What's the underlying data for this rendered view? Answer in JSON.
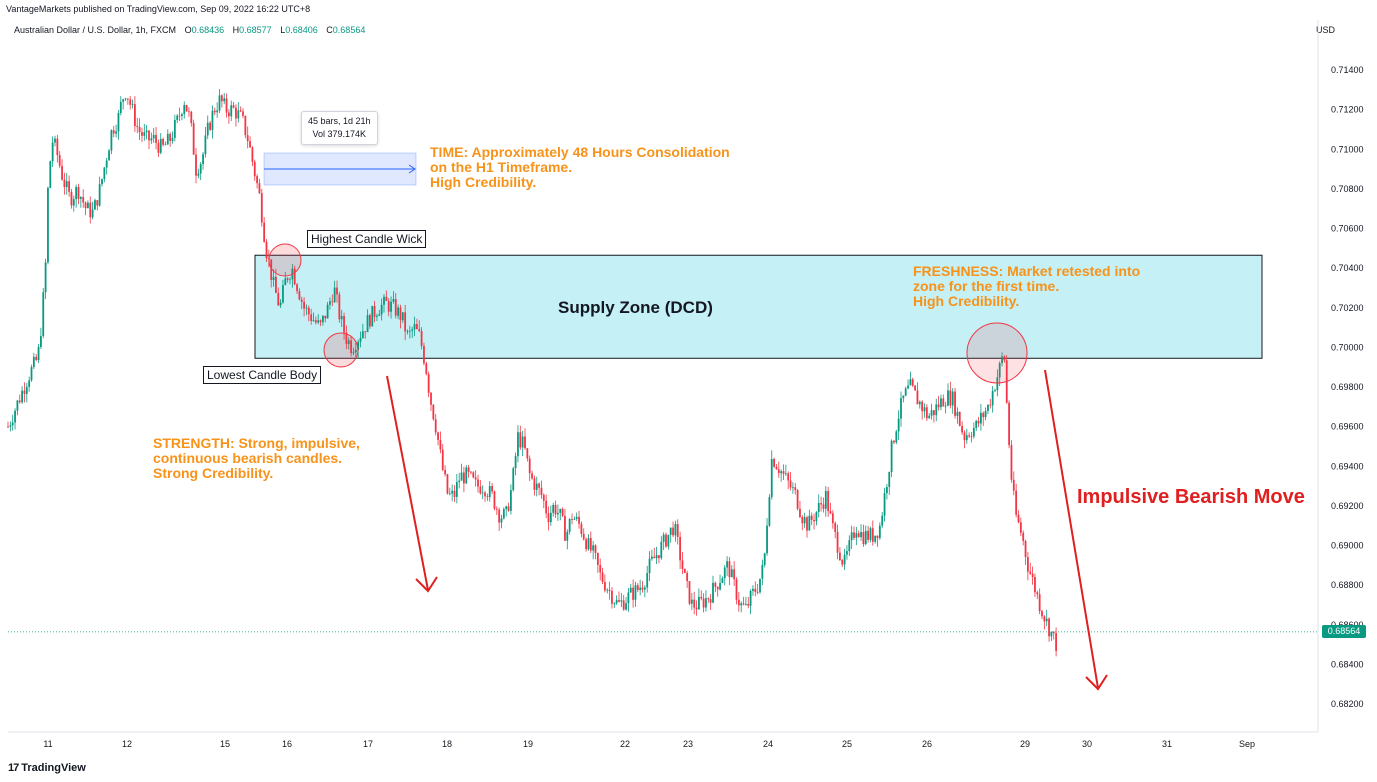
{
  "header": {
    "published": "VantageMarkets published on TradingView.com, Sep 09, 2022 16:22 UTC+8",
    "symbol": "Australian Dollar / U.S. Dollar, 1h, FXCM",
    "o_label": "O",
    "o_value": "0.68436",
    "h_label": "H",
    "h_value": "0.68577",
    "l_label": "L",
    "l_value": "0.68406",
    "c_label": "C",
    "c_value": "0.68564",
    "currency": "USD"
  },
  "footer": {
    "brand": "TradingView",
    "logo": "17"
  },
  "annotations": {
    "time_text": "TIME: Approximately 48 Hours Consolidation\non the H1 Timeframe.\nHigh Credibility.",
    "freshness_text": "FRESHNESS: Market retested into\nzone for the first time.\nHigh Credibility.",
    "strength_text": "STRENGTH: Strong, impulsive,\ncontinuous bearish candles.\nStrong Credibility.",
    "highest_wick": "Highest Candle Wick",
    "lowest_body": "Lowest Candle Body",
    "supply_zone": "Supply Zone (DCD)",
    "impulsive": "Impulsive Bearish Move",
    "tooltip_line1": "45 bars, 1d 21h",
    "tooltip_line2": "Vol 379.174K"
  },
  "current_price": "0.68564",
  "colors": {
    "up": "#089981",
    "down": "#f23645",
    "zone": "#b2ebf2",
    "accent": "#f7931a",
    "arrow": "#e02020"
  },
  "chart_data": {
    "type": "candlestick",
    "y_ticks": [
      "0.71400",
      "0.71200",
      "0.71000",
      "0.70800",
      "0.70600",
      "0.70400",
      "0.70200",
      "0.70000",
      "0.69800",
      "0.69600",
      "0.69400",
      "0.69200",
      "0.69000",
      "0.68800",
      "0.68600",
      "0.68400",
      "0.68200"
    ],
    "x_ticks": [
      "11",
      "12",
      "15",
      "16",
      "17",
      "18",
      "19",
      "22",
      "23",
      "24",
      "25",
      "26",
      "29",
      "30",
      "31",
      "Sep"
    ],
    "ylim": [
      0.681,
      0.7165
    ],
    "supply_zone": [
      0.69945,
      0.70465
    ],
    "price_path": [
      [
        0,
        0.696
      ],
      [
        12,
        0.6975
      ],
      [
        20,
        0.6985
      ],
      [
        30,
        0.6995
      ],
      [
        34,
        0.7015
      ],
      [
        38,
        0.7045
      ],
      [
        40,
        0.708
      ],
      [
        44,
        0.7105
      ],
      [
        48,
        0.71
      ],
      [
        55,
        0.7085
      ],
      [
        62,
        0.7075
      ],
      [
        70,
        0.708
      ],
      [
        78,
        0.707
      ],
      [
        85,
        0.7068
      ],
      [
        92,
        0.708
      ],
      [
        98,
        0.7095
      ],
      [
        104,
        0.711
      ],
      [
        110,
        0.7115
      ],
      [
        114,
        0.7125
      ],
      [
        118,
        0.713
      ],
      [
        124,
        0.712
      ],
      [
        130,
        0.711
      ],
      [
        138,
        0.7105
      ],
      [
        146,
        0.7105
      ],
      [
        154,
        0.71
      ],
      [
        162,
        0.7105
      ],
      [
        170,
        0.7115
      ],
      [
        176,
        0.7125
      ],
      [
        182,
        0.7115
      ],
      [
        188,
        0.709
      ],
      [
        194,
        0.7095
      ],
      [
        200,
        0.711
      ],
      [
        206,
        0.712
      ],
      [
        212,
        0.7125
      ],
      [
        218,
        0.712
      ],
      [
        226,
        0.712
      ],
      [
        234,
        0.7115
      ],
      [
        240,
        0.7105
      ],
      [
        246,
        0.709
      ],
      [
        252,
        0.7075
      ],
      [
        258,
        0.705
      ],
      [
        262,
        0.704
      ],
      [
        266,
        0.703
      ],
      [
        272,
        0.702
      ],
      [
        278,
        0.7035
      ],
      [
        284,
        0.704
      ],
      [
        290,
        0.703
      ],
      [
        296,
        0.702
      ],
      [
        304,
        0.7015
      ],
      [
        312,
        0.701
      ],
      [
        320,
        0.702
      ],
      [
        326,
        0.703
      ],
      [
        332,
        0.7015
      ],
      [
        338,
        0.7005
      ],
      [
        344,
        0.7
      ],
      [
        350,
        0.7005
      ],
      [
        356,
        0.701
      ],
      [
        362,
        0.7015
      ],
      [
        370,
        0.702
      ],
      [
        378,
        0.7022
      ],
      [
        386,
        0.702
      ],
      [
        394,
        0.7015
      ],
      [
        400,
        0.7005
      ],
      [
        406,
        0.701
      ],
      [
        412,
        0.7005
      ],
      [
        418,
        0.699
      ],
      [
        422,
        0.6975
      ],
      [
        428,
        0.696
      ],
      [
        434,
        0.694
      ],
      [
        440,
        0.6925
      ],
      [
        446,
        0.6925
      ],
      [
        452,
        0.6935
      ],
      [
        460,
        0.6935
      ],
      [
        468,
        0.693
      ],
      [
        476,
        0.693
      ],
      [
        484,
        0.6925
      ],
      [
        492,
        0.6915
      ],
      [
        498,
        0.6915
      ],
      [
        504,
        0.693
      ],
      [
        510,
        0.6955
      ],
      [
        516,
        0.695
      ],
      [
        522,
        0.6935
      ],
      [
        528,
        0.693
      ],
      [
        534,
        0.6925
      ],
      [
        540,
        0.6915
      ],
      [
        546,
        0.692
      ],
      [
        552,
        0.6915
      ],
      [
        558,
        0.6905
      ],
      [
        564,
        0.6915
      ],
      [
        572,
        0.691
      ],
      [
        580,
        0.69
      ],
      [
        586,
        0.6895
      ],
      [
        592,
        0.6885
      ],
      [
        598,
        0.688
      ],
      [
        604,
        0.6875
      ],
      [
        610,
        0.687
      ],
      [
        616,
        0.6872
      ],
      [
        622,
        0.6875
      ],
      [
        630,
        0.6878
      ],
      [
        636,
        0.6882
      ],
      [
        642,
        0.689
      ],
      [
        648,
        0.6895
      ],
      [
        654,
        0.69
      ],
      [
        660,
        0.6905
      ],
      [
        666,
        0.691
      ],
      [
        672,
        0.6895
      ],
      [
        678,
        0.688
      ],
      [
        684,
        0.687
      ],
      [
        690,
        0.687
      ],
      [
        696,
        0.6872
      ],
      [
        702,
        0.6875
      ],
      [
        708,
        0.688
      ],
      [
        714,
        0.6885
      ],
      [
        720,
        0.689
      ],
      [
        726,
        0.688
      ],
      [
        732,
        0.687
      ],
      [
        738,
        0.6868
      ],
      [
        744,
        0.6875
      ],
      [
        750,
        0.688
      ],
      [
        756,
        0.689
      ],
      [
        760,
        0.692
      ],
      [
        764,
        0.6945
      ],
      [
        770,
        0.694
      ],
      [
        776,
        0.6935
      ],
      [
        782,
        0.693
      ],
      [
        788,
        0.6925
      ],
      [
        794,
        0.6915
      ],
      [
        800,
        0.691
      ],
      [
        806,
        0.6915
      ],
      [
        812,
        0.692
      ],
      [
        818,
        0.6925
      ],
      [
        824,
        0.691
      ],
      [
        830,
        0.69
      ],
      [
        836,
        0.689
      ],
      [
        842,
        0.69
      ],
      [
        848,
        0.691
      ],
      [
        854,
        0.6905
      ],
      [
        860,
        0.6905
      ],
      [
        866,
        0.6905
      ],
      [
        872,
        0.691
      ],
      [
        878,
        0.693
      ],
      [
        884,
        0.695
      ],
      [
        890,
        0.6965
      ],
      [
        896,
        0.6975
      ],
      [
        902,
        0.698
      ],
      [
        908,
        0.6975
      ],
      [
        914,
        0.697
      ],
      [
        920,
        0.6965
      ],
      [
        926,
        0.6968
      ],
      [
        932,
        0.6972
      ],
      [
        938,
        0.6975
      ],
      [
        944,
        0.6975
      ],
      [
        950,
        0.6965
      ],
      [
        956,
        0.6955
      ],
      [
        962,
        0.6958
      ],
      [
        968,
        0.696
      ],
      [
        974,
        0.6965
      ],
      [
        980,
        0.697
      ],
      [
        986,
        0.698
      ],
      [
        992,
        0.699
      ],
      [
        996,
        0.6998
      ],
      [
        1000,
        0.696
      ],
      [
        1004,
        0.693
      ],
      [
        1008,
        0.6915
      ],
      [
        1014,
        0.6905
      ],
      [
        1020,
        0.689
      ],
      [
        1026,
        0.688
      ],
      [
        1032,
        0.687
      ],
      [
        1038,
        0.6862
      ],
      [
        1044,
        0.6855
      ],
      [
        1050,
        0.6848
      ]
    ]
  }
}
